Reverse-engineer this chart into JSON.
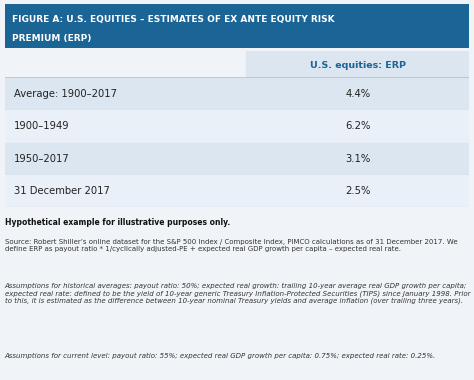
{
  "title_line1": "FIGURE A: U.S. EQUITIES – ESTIMATES OF EX ANTE EQUITY RISK",
  "title_line2": "PREMIUM (ERP)",
  "title_bg": "#1a6496",
  "title_text_color": "#ffffff",
  "header_col": "U.S. equities: ERP",
  "header_color": "#1a6496",
  "rows": [
    {
      "label": "Average: 1900–2017",
      "value": "4.4%",
      "bg": "#dce6f0"
    },
    {
      "label": "1900–1949",
      "value": "6.2%",
      "bg": "#eaf0f8"
    },
    {
      "label": "1950–2017",
      "value": "3.1%",
      "bg": "#dce6f0"
    },
    {
      "label": "31 December 2017",
      "value": "2.5%",
      "bg": "#eaf0f8"
    }
  ],
  "divider_color": "#aac4de",
  "footer_bold": "Hypothetical example for illustrative purposes only.",
  "footer_source": "Source: Robert Shiller’s online dataset for the S&P 500 Index / Composite Index, PIMCO calculations as of 31 December 2017. We define ERP as payout ratio * 1/cyclically adjusted-PE + expected real GDP growth per capita – expected real rate.",
  "footer_hist": "Assumptions for historical averages: payout ratio: 50%; expected real growth: trailing 10-year average real GDP growth per capita; expected real rate: defined to be the yield of 10-year generic Treasury Inflation-Protected Securities (TIPS) since January 1998. Prior to this, it is estimated as the difference between 10-year nominal Treasury yields and average inflation (over trailing three years).",
  "footer_current": "Assumptions for current level: payout ratio: 55%; expected real GDP growth per capita: 0.75%; expected real rate: 0.25%.",
  "bg_color": "#f0f4f8",
  "footer_bg": "#f0f4f8"
}
